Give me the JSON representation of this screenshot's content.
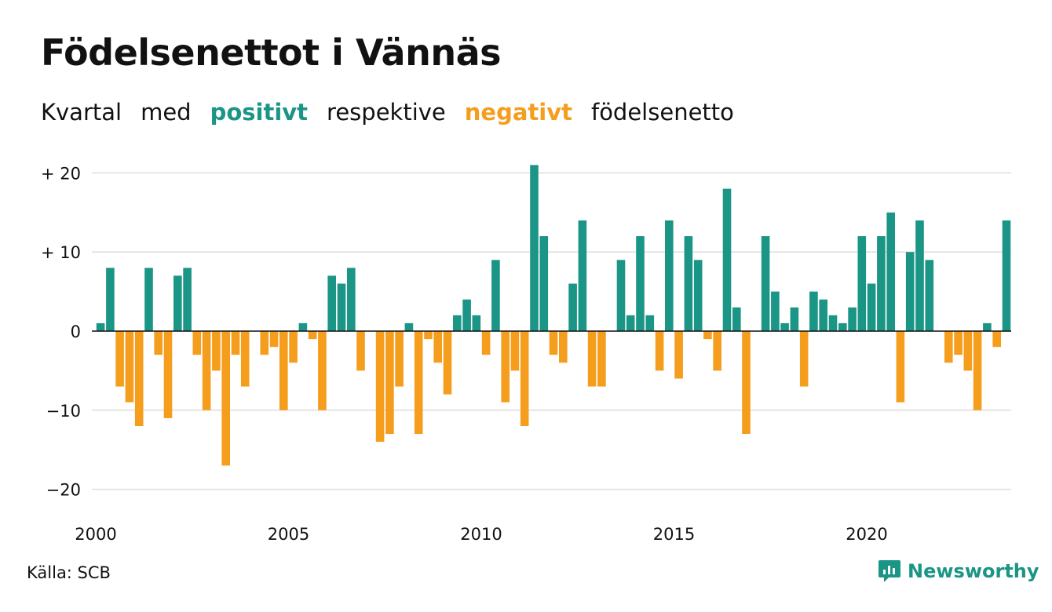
{
  "title": "Födelsenettot i Vännäs",
  "subtitle": {
    "w1": "Kvartal",
    "w2": "med",
    "positive": "positivt",
    "w3": "respektive",
    "negative": "negativt",
    "w4": "födelsenetto"
  },
  "colors": {
    "positive": "#1a9586",
    "negative": "#f59d1d",
    "grid": "#dddddd",
    "zero_line": "#111111"
  },
  "source": "Källa: SCB",
  "logo": {
    "text": "Newsworthy",
    "icon": "newsworthy-logo-icon"
  },
  "chart_data": {
    "type": "bar",
    "unit": "quarter",
    "start": "2000-Q1",
    "ylim": [
      -21,
      21
    ],
    "yticks": [
      {
        "value": 20,
        "label": "+ 20"
      },
      {
        "value": 10,
        "label": "+ 10"
      },
      {
        "value": 0,
        "label": "0"
      },
      {
        "value": -10,
        "label": "−10"
      },
      {
        "value": -20,
        "label": "−20"
      }
    ],
    "xticks": [
      {
        "value": 2000,
        "label": "2000"
      },
      {
        "value": 2005,
        "label": "2005"
      },
      {
        "value": 2010,
        "label": "2010"
      },
      {
        "value": 2015,
        "label": "2015"
      },
      {
        "value": 2020,
        "label": "2020"
      }
    ],
    "grid": true,
    "values": [
      1,
      8,
      -7,
      -9,
      -12,
      8,
      -3,
      -11,
      7,
      8,
      -3,
      -10,
      -5,
      -17,
      -3,
      -7,
      0,
      -3,
      -2,
      -10,
      -4,
      1,
      -1,
      -10,
      7,
      6,
      8,
      -5,
      0,
      -14,
      -13,
      -7,
      1,
      -13,
      -1,
      -4,
      -8,
      2,
      4,
      2,
      -3,
      9,
      -9,
      -5,
      -12,
      21,
      12,
      -3,
      -4,
      6,
      14,
      -7,
      -7,
      0,
      9,
      2,
      12,
      2,
      -5,
      14,
      -6,
      12,
      9,
      -1,
      -5,
      18,
      3,
      -13,
      0,
      12,
      5,
      1,
      3,
      -7,
      5,
      4,
      2,
      1,
      3,
      12,
      6,
      12,
      15,
      -9,
      10,
      14,
      9,
      0,
      -4,
      -3,
      -5,
      -10,
      1,
      -2,
      14
    ]
  }
}
